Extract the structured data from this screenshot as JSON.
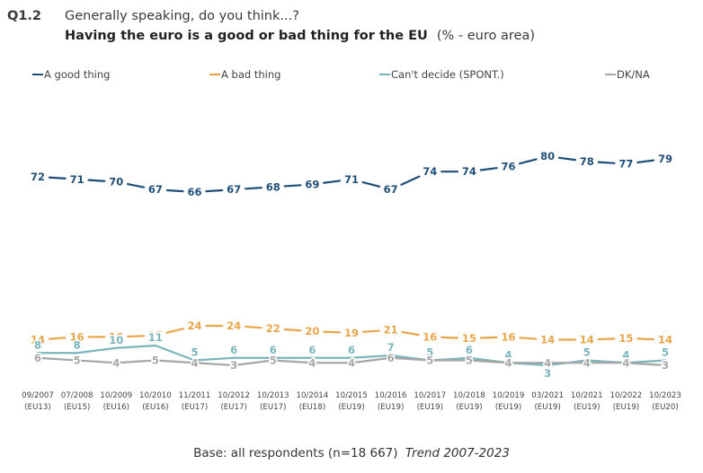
{
  "header": {
    "q_number": "Q1.2",
    "q_text": "Generally speaking, do you think...?",
    "subtitle_bold": "Having the euro is a good or bad thing for the EU",
    "subtitle_suffix": "(% - euro area)"
  },
  "footer": {
    "base": "Base: all respondents (n=18 667)",
    "trend": "Trend 2007-2023"
  },
  "chart_data": {
    "type": "line",
    "title": "Having the euro is a good or bad thing for the EU",
    "x": [
      "09/2007",
      "07/2008",
      "10/2009",
      "10/2010",
      "11/2011",
      "10/2012",
      "10/2013",
      "10/2014",
      "10/2015",
      "10/2016",
      "10/2017",
      "10/2018",
      "10/2019",
      "03/2021",
      "10/2021",
      "10/2022",
      "10/2023"
    ],
    "x_sub": [
      "(EU13)",
      "(EU15)",
      "(EU16)",
      "(EU16)",
      "(EU17)",
      "(EU17)",
      "(EU17)",
      "(EU18)",
      "(EU19)",
      "(EU19)",
      "(EU19)",
      "(EU19)",
      "(EU19)",
      "(EU19)",
      "(EU19)",
      "(EU19)",
      "(EU20)"
    ],
    "legend_position": "top",
    "grid": false,
    "series": [
      {
        "name": "A good thing",
        "color": "#1f4e79",
        "values": [
          72,
          71,
          70,
          67,
          66,
          67,
          68,
          69,
          71,
          67,
          74,
          74,
          76,
          80,
          78,
          77,
          79
        ]
      },
      {
        "name": "A bad thing",
        "color": "#e8a449",
        "values": [
          14,
          16,
          16,
          17,
          24,
          24,
          22,
          20,
          19,
          21,
          16,
          15,
          16,
          14,
          14,
          15,
          14
        ]
      },
      {
        "name": "Can't decide (SPONT.)",
        "color": "#7ab5bd",
        "values": [
          8,
          8,
          10,
          11,
          5,
          6,
          6,
          6,
          6,
          7,
          5,
          6,
          4,
          3,
          5,
          4,
          5
        ]
      },
      {
        "name": "DK/NA",
        "color": "#a6a6a6",
        "values": [
          6,
          5,
          4,
          5,
          4,
          3,
          5,
          4,
          4,
          6,
          5,
          5,
          4,
          4,
          4,
          4,
          3
        ]
      }
    ]
  }
}
